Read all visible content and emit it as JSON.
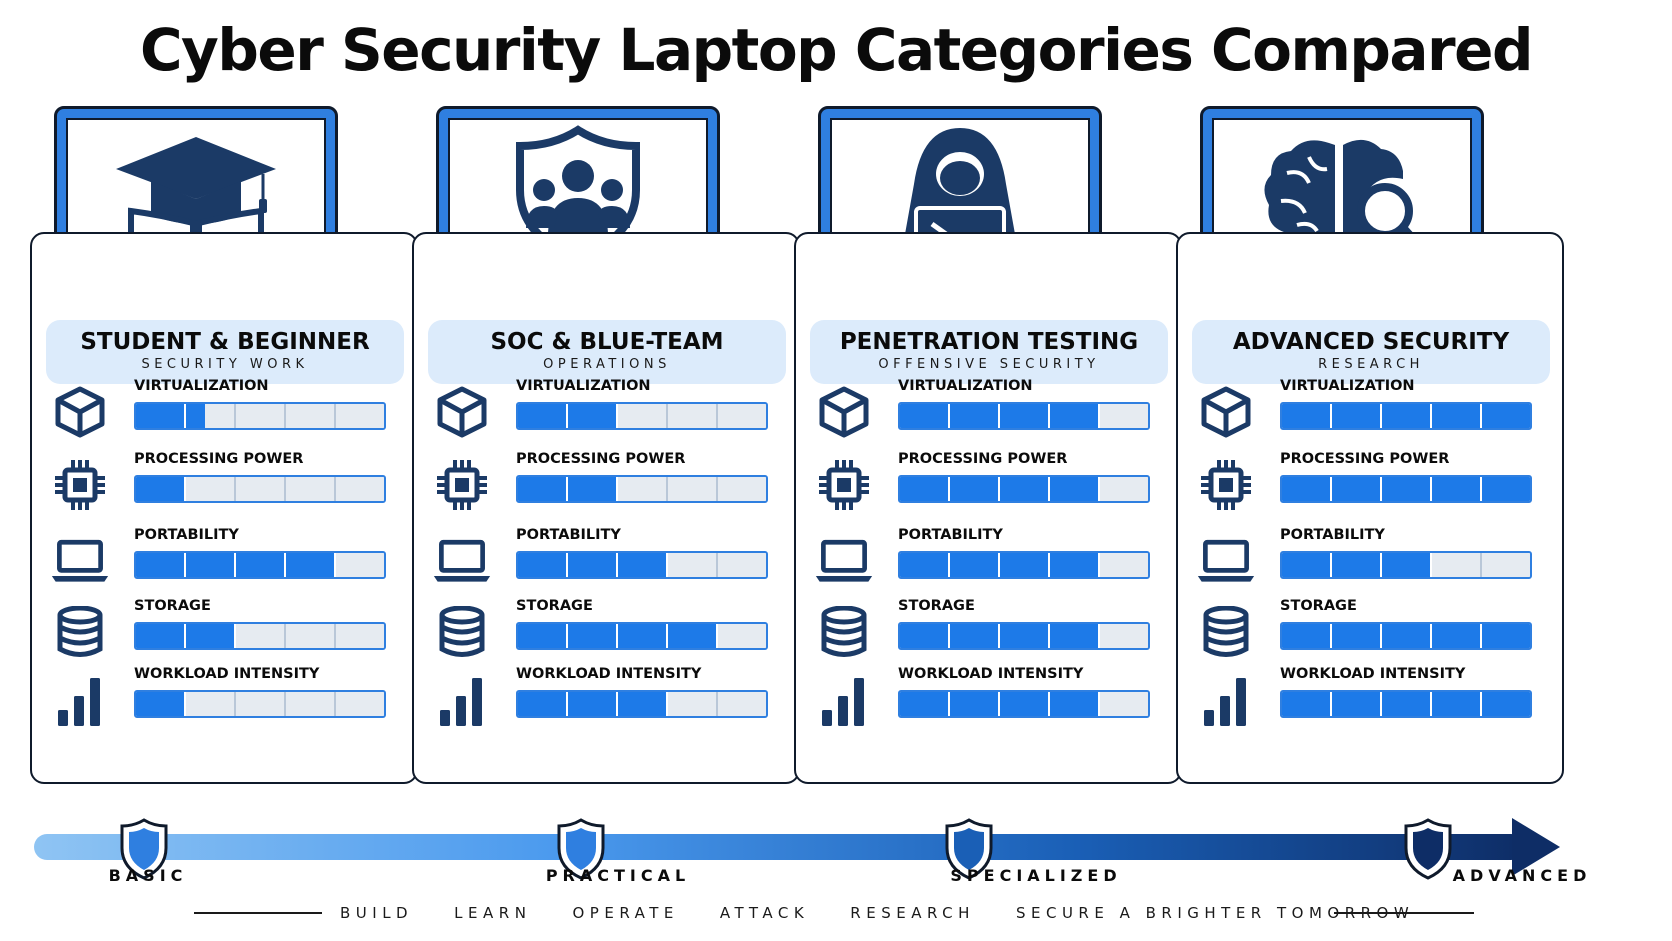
{
  "title": "Cyber Security Laptop Categories Compared",
  "colors": {
    "accent": "#1d7ae8",
    "navy": "#0f1a2b",
    "header_bg": "#dcebfb"
  },
  "segments_per_bar": 5,
  "metric_labels": [
    "VIRTUALIZATION",
    "PROCESSING POWER",
    "PORTABILITY",
    "STORAGE",
    "WORKLOAD INTENSITY"
  ],
  "metric_icons": [
    "cube-icon",
    "cpu-chip-icon",
    "laptop-icon",
    "database-icon",
    "bar-chart-icon"
  ],
  "cards": [
    {
      "title": "STUDENT & BEGINNER",
      "subtitle": "SECURITY WORK",
      "icon": "graduation-cap-book-icon",
      "levels": [
        1.5,
        1,
        4,
        2,
        1
      ]
    },
    {
      "title": "SOC & BLUE-TEAM",
      "subtitle": "OPERATIONS",
      "icon": "shield-team-icon",
      "levels": [
        2,
        2,
        3,
        4,
        3
      ]
    },
    {
      "title": "PENETRATION TESTING",
      "subtitle": "OFFENSIVE SECURITY",
      "icon": "hooded-hacker-icon",
      "levels": [
        4,
        4,
        4,
        4,
        4
      ]
    },
    {
      "title": "ADVANCED SECURITY",
      "subtitle": "RESEARCH",
      "icon": "brain-magnifier-icon",
      "levels": [
        5,
        5,
        3,
        5,
        5
      ]
    }
  ],
  "stages": [
    "BASIC",
    "PRACTICAL",
    "SPECIALIZED",
    "ADVANCED"
  ],
  "footer": "BUILD    LEARN    OPERATE    ATTACK    RESEARCH    SECURE A BRIGHTER TOMORROW"
}
